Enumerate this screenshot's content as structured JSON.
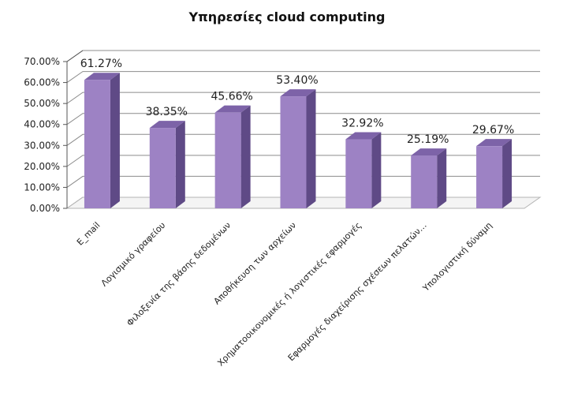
{
  "chart_data": {
    "type": "bar",
    "title": "Υπηρεσίες cloud computing",
    "categories": [
      "E_mail",
      "Λογισμικό γραφείου",
      "Φιλοξενία της βάσης δεδομένων",
      "Αποθήκευση των αρχείων",
      "Χρηματοοικονομικές ή λογιστικές εφαρμογές",
      "Εφαρμογές διαχείρισης σχέσεων πελατών…",
      "Υπολογιστική δύναμη"
    ],
    "values": [
      61.27,
      38.35,
      45.66,
      53.4,
      32.92,
      25.19,
      29.67
    ],
    "data_labels": [
      "61.27%",
      "38.35%",
      "45.66%",
      "53.40%",
      "32.92%",
      "25.19%",
      "29.67%"
    ],
    "yticks": [
      "0.00%",
      "10.00%",
      "20.00%",
      "30.00%",
      "40.00%",
      "50.00%",
      "60.00%",
      "70.00%"
    ],
    "ylim": [
      0,
      70
    ],
    "grid": true,
    "legend": "none",
    "colors": {
      "bar_front": "#9d82c4",
      "bar_side": "#5f4a86",
      "bar_top": "#7d63a8",
      "gridline": "#8c8c8c",
      "axis": "#555555"
    }
  }
}
